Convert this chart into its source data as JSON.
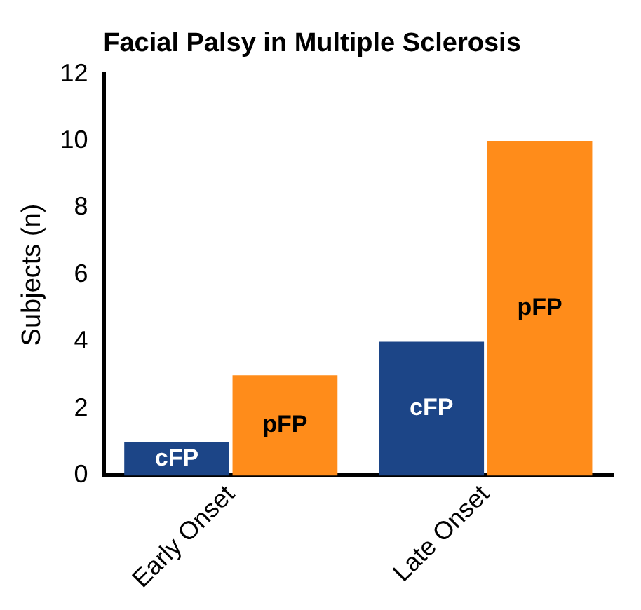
{
  "chart_data": {
    "type": "bar",
    "title": "Facial Palsy in Multiple Sclerosis",
    "ylabel": "Subjects (n)",
    "categories": [
      "Early Onset",
      "Late Onset"
    ],
    "series": [
      {
        "name": "cFP",
        "color": "#1c4587",
        "values": [
          1,
          4
        ]
      },
      {
        "name": "pFP",
        "color": "#ff8c1a",
        "values": [
          3,
          10
        ]
      }
    ],
    "ylim": [
      0,
      12
    ],
    "yticks": [
      0,
      2,
      4,
      6,
      8,
      10,
      12
    ],
    "grid": false,
    "legend": false
  }
}
